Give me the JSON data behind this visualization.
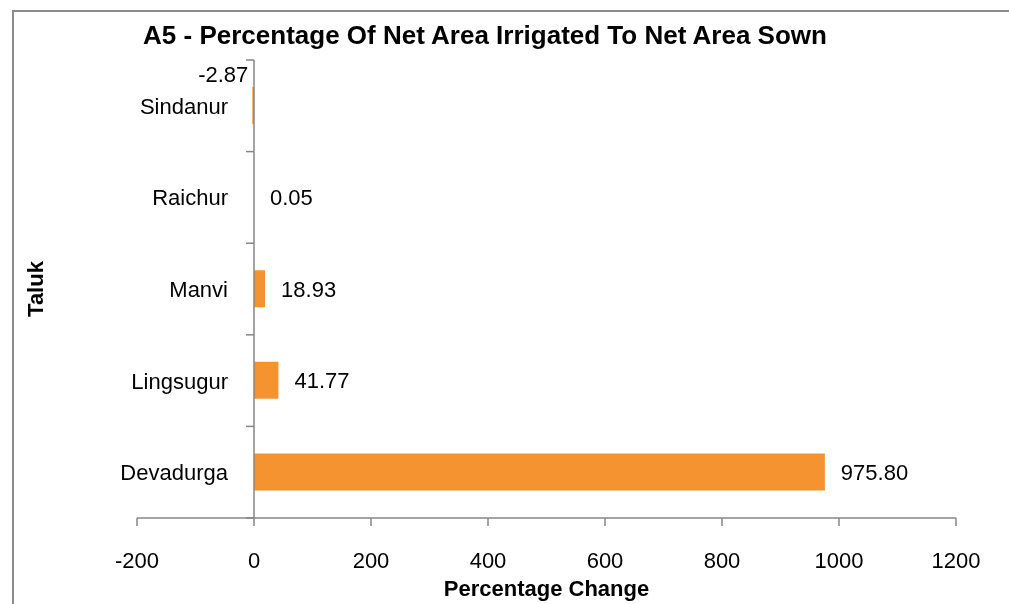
{
  "chart_data": {
    "type": "bar",
    "orientation": "horizontal",
    "title": "A5 - Percentage Of Net Area Irrigated To Net Area Sown",
    "xlabel": "Percentage Change",
    "ylabel": "Taluk",
    "categories": [
      "Sindanur",
      "Raichur",
      "Manvi",
      "Lingsugur",
      "Devadurga"
    ],
    "values": [
      -2.87,
      0.05,
      18.93,
      41.77,
      975.8
    ],
    "value_labels": [
      "-2.87",
      "0.05",
      "18.93",
      "41.77",
      "975.80"
    ],
    "color": "#f59331",
    "xlim": [
      -200,
      1200
    ],
    "xticks": [
      -200,
      0,
      200,
      400,
      600,
      800,
      1000,
      1200
    ]
  }
}
